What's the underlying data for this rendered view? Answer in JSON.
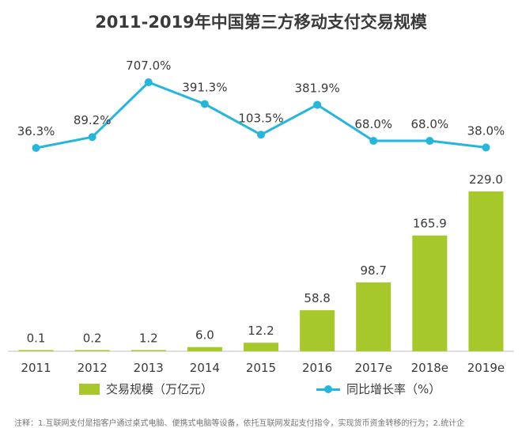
{
  "chart_data": {
    "type": "bar+line",
    "title": "2011-2019年中国第三方移动支付交易规模",
    "categories": [
      "2011",
      "2012",
      "2013",
      "2014",
      "2015",
      "2016",
      "2017e",
      "2018e",
      "2019e"
    ],
    "series": [
      {
        "name": "交易规模（万亿元）",
        "type": "bar",
        "values": [
          0.1,
          0.2,
          1.2,
          6.0,
          12.2,
          58.8,
          98.7,
          165.9,
          229.0
        ],
        "labels": [
          "0.1",
          "0.2",
          "1.2",
          "6.0",
          "12.2",
          "58.8",
          "98.7",
          "165.9",
          "229.0"
        ],
        "color": "#a6c82a"
      },
      {
        "name": "同比增长率（%）",
        "type": "line",
        "values": [
          36.3,
          89.2,
          707.0,
          391.3,
          103.5,
          381.9,
          68.0,
          68.0,
          38.0
        ],
        "labels": [
          "36.3%",
          "89.2%",
          "707.0%",
          "391.3%",
          "103.5%",
          "381.9%",
          "68.0%",
          "68.0%",
          "38.0%"
        ],
        "color": "#24b6dd"
      }
    ],
    "grid": false,
    "legend_position": "bottom"
  },
  "footnote": "注释：1.互联网支付是指客户通过桌式电脑、便携式电脑等设备，依托互联网发起支付指令，实现货币资金转移的行为；2.统计企"
}
